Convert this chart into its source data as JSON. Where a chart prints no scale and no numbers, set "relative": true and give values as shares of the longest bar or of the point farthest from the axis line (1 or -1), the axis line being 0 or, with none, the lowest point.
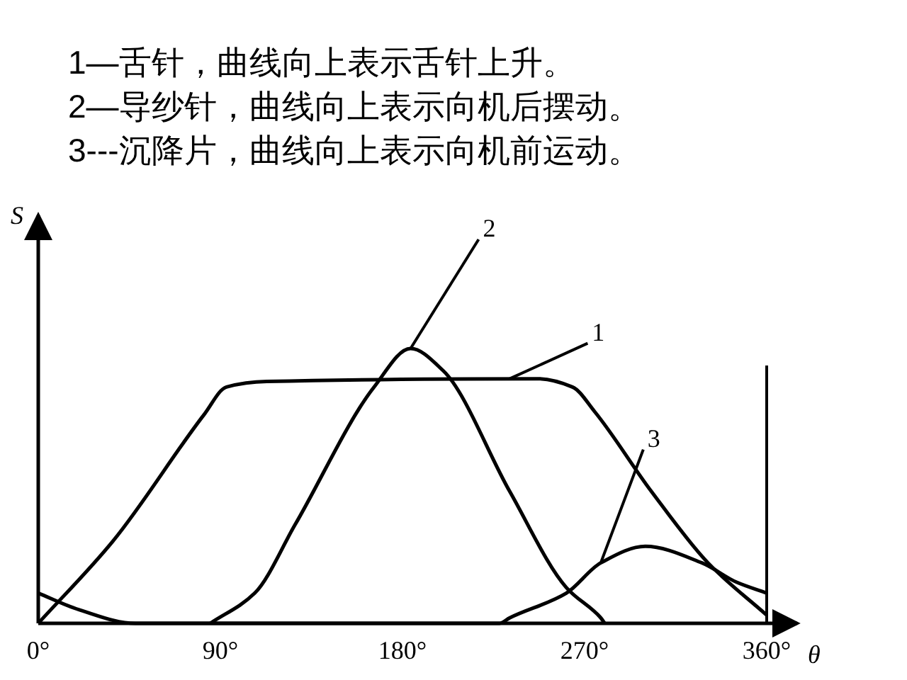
{
  "chart_data": {
    "type": "line",
    "relative": true,
    "xlabel": "θ",
    "ylabel": "S",
    "annotations": [
      "1—舌针，曲线向上表示舌针上升。",
      "2—导纱针，曲线向上表示向机后摆动。",
      "3---沉降片，曲线向上表示向机前运动。"
    ],
    "xlim": [
      0,
      375
    ],
    "xticks": [
      {
        "value": 0,
        "label": "0°"
      },
      {
        "value": 90,
        "label": "90°"
      },
      {
        "value": 180,
        "label": "180°"
      },
      {
        "value": 270,
        "label": "270°"
      },
      {
        "value": 360,
        "label": "360°"
      }
    ],
    "ref_lines": [
      {
        "axis": "x",
        "value": 360,
        "color": "#000000"
      }
    ],
    "line_style": "solid",
    "series": [
      {
        "name": "1",
        "color": "#000000",
        "x": [
          0,
          37,
          82,
          93,
          113,
          247,
          264,
          275,
          303,
          331,
          360
        ],
        "values": [
          0,
          0.3,
          0.76,
          0.86,
          0.88,
          0.89,
          0.86,
          0.77,
          0.48,
          0.22,
          0.03
        ]
      },
      {
        "name": "2",
        "color": "#000000",
        "x": [
          85,
          107,
          127,
          166,
          184,
          200,
          233,
          261,
          278,
          280
        ],
        "values": [
          0,
          0.11,
          0.36,
          0.86,
          1,
          0.92,
          0.48,
          0.13,
          0.02,
          0
        ]
      },
      {
        "name": "3",
        "color": "#000000",
        "x": [
          0,
          20,
          48,
          140,
          228,
          233,
          261,
          278,
          300,
          328,
          345,
          360
        ],
        "values": [
          0.11,
          0.05,
          0,
          0,
          0,
          0.02,
          0.11,
          0.22,
          0.28,
          0.22,
          0.15,
          0.11
        ]
      }
    ]
  }
}
